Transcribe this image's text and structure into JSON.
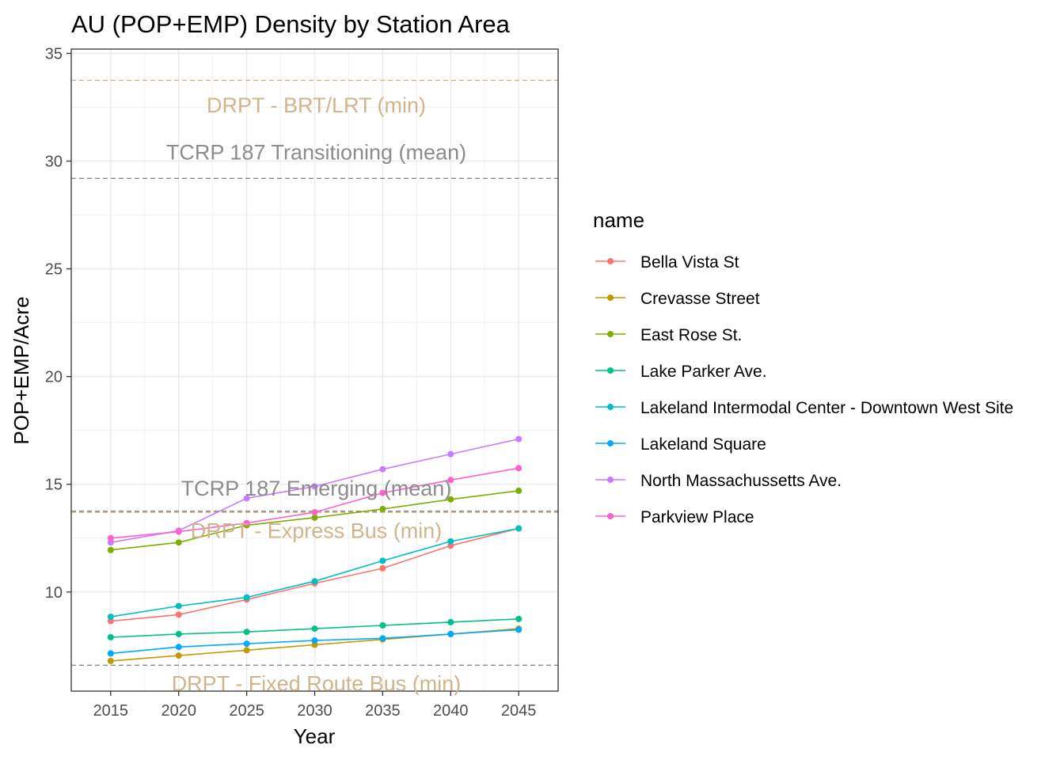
{
  "chart_data": {
    "type": "line",
    "title": "AU (POP+EMP) Density by Station Area",
    "xlabel": "Year",
    "ylabel": "POP+EMP/Acre",
    "x": [
      2015,
      2020,
      2025,
      2030,
      2035,
      2040,
      2045
    ],
    "x_ticks": [
      "2015",
      "2020",
      "2025",
      "2030",
      "2035",
      "2040",
      "2045"
    ],
    "y_ticks": [
      "10",
      "15",
      "20",
      "25",
      "30",
      "35"
    ],
    "xlim": [
      2012.1,
      2047.9
    ],
    "ylim": [
      5.4,
      35.2
    ],
    "grid": true,
    "legend": {
      "title": "name",
      "position": "right"
    },
    "series": [
      {
        "name": "Bella Vista St",
        "color": "#F8766D",
        "values": [
          8.65,
          8.95,
          9.65,
          10.4,
          11.1,
          12.15,
          12.95
        ]
      },
      {
        "name": "Crevasse Street",
        "color": "#C49A00",
        "values": [
          6.8,
          7.05,
          7.3,
          7.55,
          7.8,
          8.05,
          8.3
        ]
      },
      {
        "name": "East Rose St.",
        "color": "#7CAE00",
        "values": [
          11.95,
          12.3,
          13.1,
          13.45,
          13.85,
          14.3,
          14.7
        ]
      },
      {
        "name": "Lake Parker Ave.",
        "color": "#00C08B",
        "values": [
          7.9,
          8.05,
          8.15,
          8.3,
          8.45,
          8.6,
          8.75
        ]
      },
      {
        "name": "Lakeland Intermodal Center - Downtown West Site",
        "color": "#00BFC4",
        "values": [
          8.85,
          9.35,
          9.75,
          10.5,
          11.45,
          12.35,
          12.95
        ]
      },
      {
        "name": "Lakeland Square",
        "color": "#00A9FF",
        "values": [
          7.15,
          7.45,
          7.6,
          7.75,
          7.85,
          8.05,
          8.25
        ]
      },
      {
        "name": "North Massachussetts Ave.",
        "color": "#C77CFF",
        "values": [
          12.3,
          12.85,
          14.35,
          14.9,
          15.7,
          16.4,
          17.1
        ]
      },
      {
        "name": "Parkview Place",
        "color": "#FF61CC",
        "values": [
          12.5,
          12.8,
          13.2,
          13.7,
          14.6,
          15.2,
          15.75
        ]
      }
    ],
    "reference_lines": [
      {
        "label": "DRPT - BRT/LRT (min)",
        "value": 33.75,
        "color": "#D2B48C",
        "label_value": 32.6
      },
      {
        "label": "TCRP 187 Transitioning (mean)",
        "value": 29.2,
        "color": "#8C8C8C",
        "label_value": 30.4
      },
      {
        "label": "TCRP 187 Emerging (mean)",
        "value": 13.75,
        "color": "#8C8C8C",
        "label_value": 14.8
      },
      {
        "label": "DRPT - Express Bus (min)",
        "value": 13.7,
        "color": "#D2B48C",
        "label_value": 12.85
      },
      {
        "label": "DRPT - Fixed Route Bus (min)",
        "value": 6.6,
        "color": "#8C8C8C",
        "label_value": 5.75,
        "label_color": "#D2B48C"
      }
    ]
  }
}
